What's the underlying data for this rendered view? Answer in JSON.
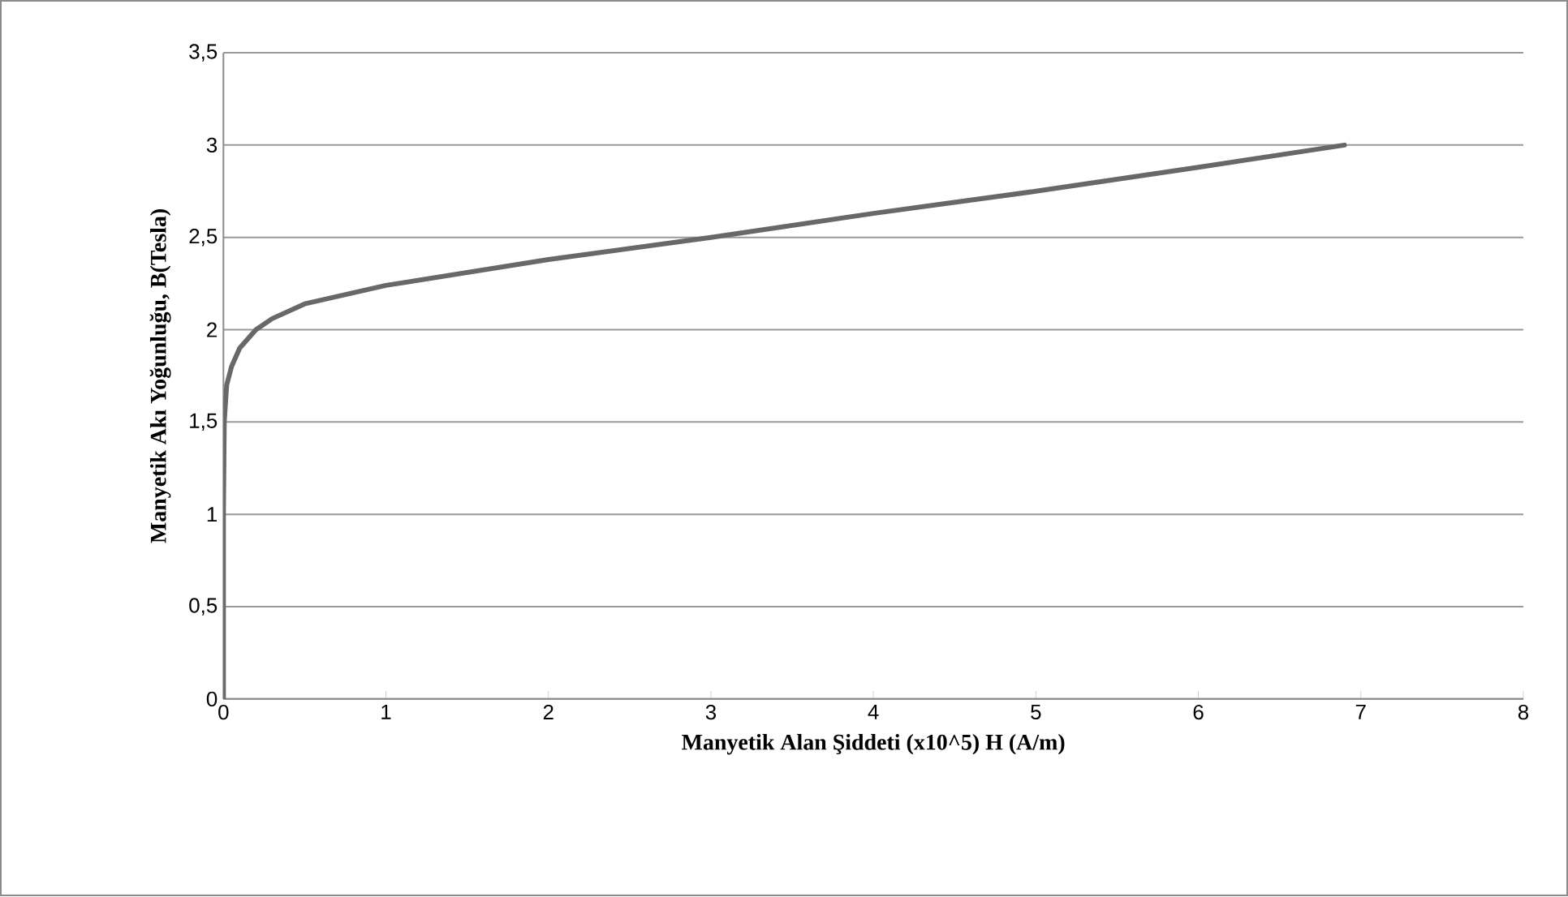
{
  "chart_data": {
    "type": "line",
    "xlabel": "Manyetik Alan Şiddeti (x10^5) H (A/m)",
    "ylabel": "Manyetik Akı Yoğunluğu, B(Tesla)",
    "x": [
      0,
      0,
      0.005,
      0.02,
      0.05,
      0.1,
      0.2,
      0.3,
      0.5,
      1,
      2,
      3,
      4,
      5,
      6,
      6.9
    ],
    "series": [
      {
        "color": "#686868",
        "values": [
          0,
          1.0,
          1.5,
          1.7,
          1.8,
          1.9,
          2.0,
          2.06,
          2.14,
          2.24,
          2.38,
          2.5,
          2.63,
          2.75,
          2.88,
          3.0
        ]
      }
    ],
    "xlim": [
      0,
      8
    ],
    "xticks": [
      0,
      1,
      2,
      3,
      4,
      5,
      6,
      7,
      8
    ],
    "ylim": [
      0,
      3.5
    ],
    "yticks": [
      0,
      {
        "value": 0.5,
        "label": "0,5"
      },
      1,
      {
        "value": 1.5,
        "label": "1,5"
      },
      2,
      {
        "value": 2.5,
        "label": "2,5"
      },
      3,
      {
        "value": 3.5,
        "label": "3,5"
      }
    ],
    "grid": "y",
    "marker": "none",
    "line_style": "solid"
  }
}
